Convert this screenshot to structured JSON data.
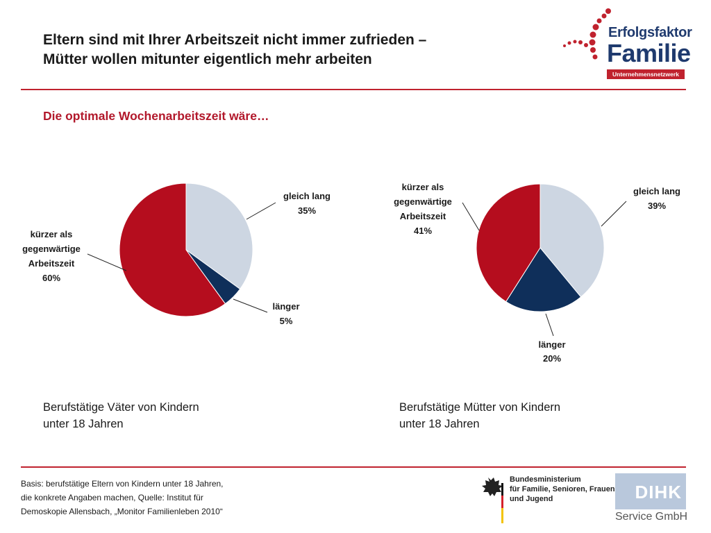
{
  "header": {
    "title_line1": "Eltern sind mit Ihrer Arbeitszeit nicht immer zufrieden –",
    "title_line2": "Mütter wollen mitunter eigentlich mehr arbeiten",
    "subtitle": "Die optimale Wochenarbeitszeit wäre…"
  },
  "logo": {
    "line1": "Erfolgsfaktor",
    "line2": "Familie",
    "line3": "Unternehmensnetzwerk"
  },
  "colors": {
    "accent_red": "#c0222e",
    "slice_light": "#cdd6e2",
    "slice_navy": "#0f2f5a",
    "slice_red": "#b50d1e"
  },
  "chart_data": [
    {
      "type": "pie",
      "slices": [
        {
          "label": "gleich lang",
          "value": 35,
          "display": "35%",
          "color": "#cdd6e2"
        },
        {
          "label": "länger",
          "value": 5,
          "display": "5%",
          "color": "#0f2f5a"
        },
        {
          "label": "kürzer als gegenwärtige Arbeitszeit",
          "value": 60,
          "display": "60%",
          "color": "#b50d1e"
        }
      ],
      "caption_line1": "Berufstätige Väter von Kindern",
      "caption_line2": "unter 18 Jahren"
    },
    {
      "type": "pie",
      "slices": [
        {
          "label": "gleich lang",
          "value": 39,
          "display": "39%",
          "color": "#cdd6e2"
        },
        {
          "label": "länger",
          "value": 20,
          "display": "20%",
          "color": "#0f2f5a"
        },
        {
          "label": "kürzer als gegenwärtige Arbeitszeit",
          "value": 41,
          "display": "41%",
          "color": "#b50d1e"
        }
      ],
      "caption_line1": "Berufstätige Mütter von Kindern",
      "caption_line2": "unter 18 Jahren"
    }
  ],
  "chart_labels": {
    "c1_gleich_1": "gleich lang",
    "c1_gleich_2": "35%",
    "c1_laenger_1": "länger",
    "c1_laenger_2": "5%",
    "c1_kurz_1": "kürzer als",
    "c1_kurz_2": "gegenwärtige",
    "c1_kurz_3": "Arbeitszeit",
    "c1_kurz_4": "60%",
    "c2_gleich_1": "gleich lang",
    "c2_gleich_2": "39%",
    "c2_laenger_1": "länger",
    "c2_laenger_2": "20%",
    "c2_kurz_1": "kürzer als",
    "c2_kurz_2": "gegenwärtige",
    "c2_kurz_3": "Arbeitszeit",
    "c2_kurz_4": "41%"
  },
  "footnote": {
    "line1": "Basis: berufstätige Eltern von Kindern unter 18 Jahren,",
    "line2": "die konkrete Angaben machen, Quelle: Institut für",
    "line3": "Demoskopie Allensbach, „Monitor Familienleben 2010“"
  },
  "ministry": {
    "line1": "Bundesministerium",
    "line2": "für Familie, Senioren, Frauen",
    "line3": "und Jugend"
  },
  "dihk": {
    "mark": "DIHK",
    "service": "Service GmbH"
  }
}
